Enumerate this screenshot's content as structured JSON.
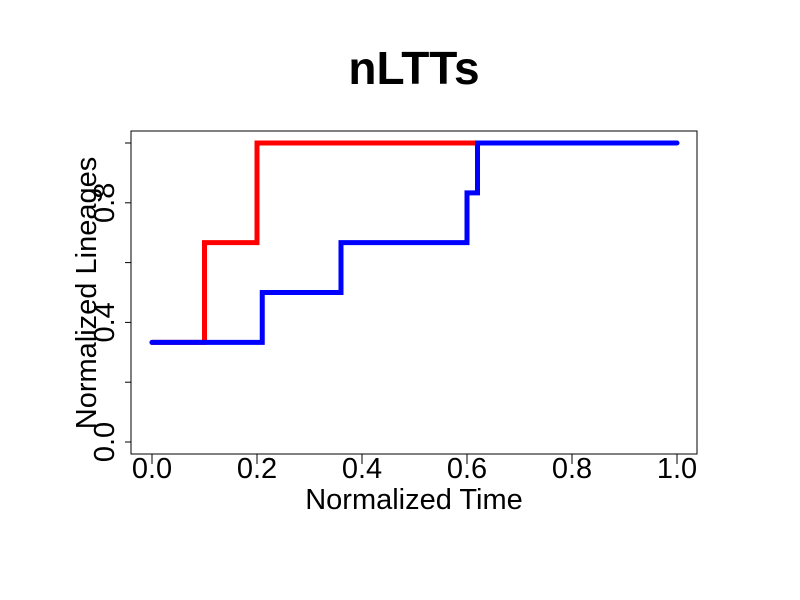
{
  "chart_data": {
    "type": "line",
    "step": true,
    "title": "nLTTs",
    "xlabel": "Normalized Time",
    "ylabel": "Normalized Lineages",
    "xlim": [
      0.0,
      1.0
    ],
    "ylim": [
      0.0,
      1.0
    ],
    "x_ticks": [
      0.0,
      0.2,
      0.4,
      0.6,
      0.8,
      1.0
    ],
    "x_tick_labels": [
      "0.0",
      "0.2",
      "0.4",
      "0.6",
      "0.8",
      "1.0"
    ],
    "y_ticks": [
      0.0,
      0.2,
      0.4,
      0.6,
      0.8,
      1.0
    ],
    "y_tick_labels": [
      "0.0",
      "",
      "0.4",
      "",
      "0.8",
      ""
    ],
    "grid": false,
    "series": [
      {
        "color": "#ff0000",
        "x": [
          0.0,
          0.1,
          0.2,
          0.62
        ],
        "y": [
          0.333,
          0.667,
          1.0,
          1.0
        ]
      },
      {
        "color": "#0000ff",
        "x": [
          0.0,
          0.21,
          0.36,
          0.6,
          0.62,
          1.0
        ],
        "y": [
          0.333,
          0.5,
          0.667,
          0.833,
          1.0,
          1.0
        ]
      }
    ]
  }
}
